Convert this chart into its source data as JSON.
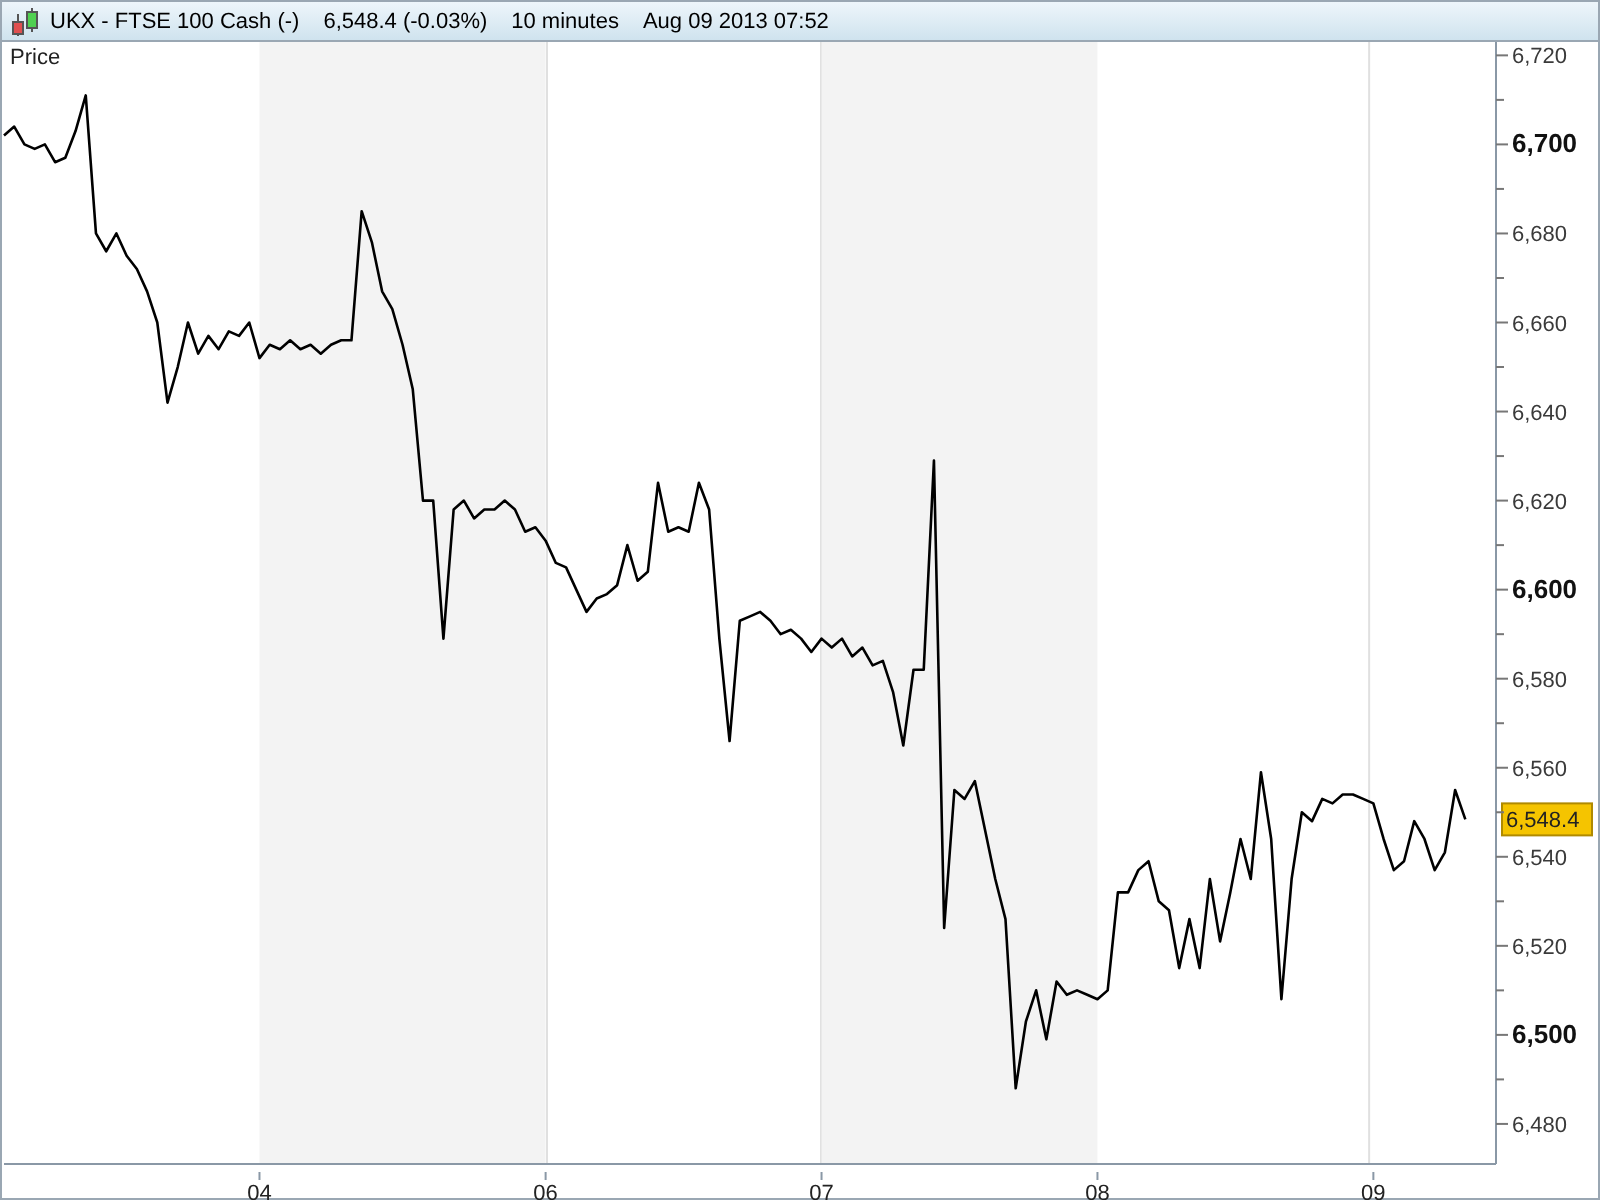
{
  "chart_data": {
    "type": "line",
    "title": "UKX - FTSE 100 Cash (-)",
    "subtitle": "6,548.4 (-0.03%)",
    "ylabel": "Price",
    "annotations": [
      "10 minutes",
      "Aug 09 2013 07:52",
      "6,548.4"
    ],
    "categories": [
      null,
      null,
      null,
      null,
      null,
      null,
      null,
      null,
      null,
      null,
      null,
      null,
      null,
      null,
      null,
      null,
      null,
      null,
      null,
      null,
      null,
      null,
      null,
      null,
      null,
      "04",
      null,
      null,
      null,
      null,
      null,
      null,
      null,
      null,
      null,
      null,
      null,
      null,
      null,
      null,
      null,
      null,
      null,
      null,
      null,
      null,
      null,
      null,
      null,
      null,
      null,
      null,
      null,
      "06",
      null,
      null,
      null,
      null,
      null,
      null,
      null,
      null,
      null,
      null,
      null,
      null,
      null,
      null,
      null,
      null,
      null,
      null,
      null,
      null,
      null,
      null,
      null,
      null,
      null,
      null,
      "07",
      null,
      null,
      null,
      null,
      null,
      null,
      null,
      null,
      null,
      null,
      null,
      null,
      null,
      null,
      null,
      null,
      null,
      null,
      null,
      null,
      null,
      null,
      null,
      null,
      null,
      null,
      "08",
      null,
      null,
      null,
      null,
      null,
      null,
      null,
      null,
      null,
      null,
      null,
      null,
      null,
      null,
      null,
      null,
      null,
      null,
      null,
      null,
      null,
      null,
      null,
      null,
      null,
      null,
      "09",
      null,
      null,
      null,
      null,
      null,
      null,
      null,
      null,
      null,
      null,
      null,
      null
    ],
    "series": [
      {
        "color": "#000000",
        "values": [
          6702,
          6704,
          6700,
          6699,
          6700,
          6696,
          6697,
          6703,
          6711,
          6680,
          6676,
          6680,
          6675,
          6672,
          6667,
          6660,
          6642,
          6650,
          6660,
          6653,
          6657,
          6654,
          6658,
          6657,
          6660,
          6652,
          6655,
          6654,
          6656,
          6654,
          6655,
          6653,
          6655,
          6656,
          6656,
          6685,
          6678,
          6667,
          6663,
          6655,
          6645,
          6620,
          6620,
          6589,
          6618,
          6620,
          6616,
          6618,
          6618,
          6620,
          6618,
          6613,
          6614,
          6611,
          6606,
          6605,
          6600,
          6595,
          6598,
          6599,
          6601,
          6610,
          6602,
          6604,
          6624,
          6613,
          6614,
          6613,
          6624,
          6618,
          6589,
          6566,
          6593,
          6594,
          6595,
          6593,
          6590,
          6591,
          6589,
          6586,
          6589,
          6587,
          6589,
          6585,
          6587,
          6583,
          6584,
          6577,
          6565,
          6582,
          6582,
          6629,
          6524,
          6555,
          6553,
          6557,
          6546,
          6535,
          6526,
          6488,
          6503,
          6510,
          6499,
          6512,
          6509,
          6510,
          6509,
          6508,
          6510,
          6532,
          6532,
          6537,
          6539,
          6530,
          6528,
          6515,
          6526,
          6515,
          6535,
          6521,
          6532,
          6544,
          6535,
          6559,
          6544,
          6508,
          6535,
          6550,
          6548,
          6553,
          6552,
          6554,
          6554,
          6553,
          6552,
          6544,
          6537,
          6539,
          6548,
          6544,
          6537,
          6541,
          6555,
          6548.4,
          null,
          null,
          null
        ]
      }
    ],
    "ylim": [
      6471,
      6723
    ],
    "yticks": [
      {
        "value": 6480,
        "label": "6,480"
      },
      {
        "value": 6490,
        "label": null
      },
      {
        "value": 6500,
        "label": "6,500"
      },
      {
        "value": 6510,
        "label": null
      },
      {
        "value": 6520,
        "label": "6,520"
      },
      {
        "value": 6530,
        "label": null
      },
      {
        "value": 6540,
        "label": "6,540"
      },
      {
        "value": 6550,
        "label": null
      },
      {
        "value": 6560,
        "label": "6,560"
      },
      {
        "value": 6570,
        "label": null
      },
      {
        "value": 6580,
        "label": "6,580"
      },
      {
        "value": 6590,
        "label": null
      },
      {
        "value": 6600,
        "label": "6,600"
      },
      {
        "value": 6610,
        "label": null
      },
      {
        "value": 6620,
        "label": "6,620"
      },
      {
        "value": 6630,
        "label": null
      },
      {
        "value": 6640,
        "label": "6,640"
      },
      {
        "value": 6650,
        "label": null
      },
      {
        "value": 6660,
        "label": "6,660"
      },
      {
        "value": 6670,
        "label": null
      },
      {
        "value": 6680,
        "label": "6,680"
      },
      {
        "value": 6690,
        "label": null
      },
      {
        "value": 6700,
        "label": "6,700"
      },
      {
        "value": 6710,
        "label": null
      },
      {
        "value": 6720,
        "label": "6,720"
      }
    ],
    "bands": [
      {
        "axis": "x",
        "from": "04",
        "to": "06",
        "color": "#f3f3f3"
      },
      {
        "axis": "x",
        "from": "07",
        "to": "08",
        "color": "#f3f3f3"
      }
    ],
    "grid": "x",
    "marker": "none",
    "line_style": "solid"
  }
}
